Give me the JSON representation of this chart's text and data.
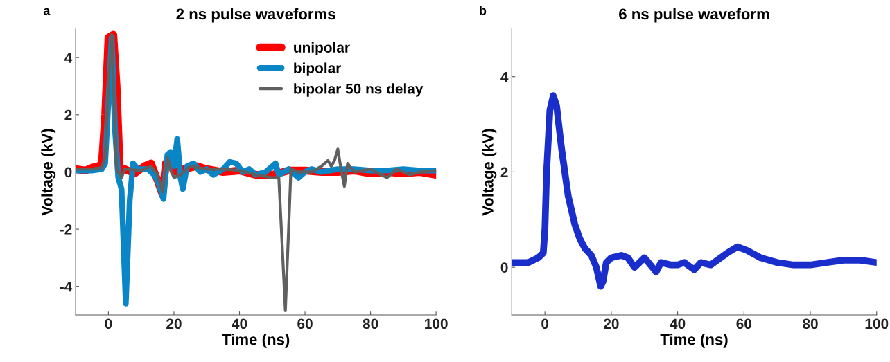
{
  "chart_data": [
    {
      "type": "line",
      "title": "2 ns pulse waveforms",
      "xlabel": "Time (ns)",
      "ylabel": "Voltage (kV)",
      "annotations": [
        "a"
      ],
      "xlim": [
        -10,
        100
      ],
      "ylim": [
        -5,
        5
      ],
      "xticks": [
        0,
        20,
        40,
        60,
        80,
        100
      ],
      "yticks": [
        -4,
        -2,
        0,
        2,
        4
      ],
      "grid": false,
      "legend": "top right",
      "series": [
        {
          "name": "unipolar",
          "color": "#ff0000",
          "x": [
            -10,
            -7,
            -5,
            -3,
            -2,
            -1,
            0,
            1.5,
            2.5,
            3.5,
            5,
            8,
            11,
            13,
            15,
            16.5,
            17.5,
            18.5,
            20,
            23,
            27,
            30,
            35,
            40,
            45,
            50,
            55,
            60,
            65,
            70,
            75,
            80,
            85,
            90,
            95,
            100
          ],
          "values": [
            0.1,
            0.05,
            0.15,
            0.2,
            0.3,
            2,
            4.7,
            4.8,
            3,
            0,
            0.1,
            -0.05,
            0.2,
            0.3,
            -0.3,
            -0.8,
            0.3,
            0.45,
            0,
            0.1,
            0.2,
            0.1,
            0,
            0.05,
            -0.1,
            -0.1,
            0.05,
            0.05,
            0,
            0,
            0.05,
            -0.05,
            0,
            -0.05,
            0,
            -0.1
          ]
        },
        {
          "name": "bipolar",
          "color": "#0a86c6",
          "x": [
            -10,
            -5,
            -2,
            -1,
            0,
            1,
            2,
            3,
            4,
            5.3,
            6.5,
            7.5,
            9,
            12,
            14,
            15,
            16.8,
            18,
            19,
            20,
            21,
            22,
            22.7,
            24,
            26,
            28,
            30,
            32,
            35,
            37,
            39,
            41,
            43,
            45,
            48,
            51,
            52,
            55,
            58,
            60,
            62,
            65,
            70,
            75,
            80,
            85,
            90,
            95,
            100
          ],
          "values": [
            0.05,
            0.05,
            0.1,
            0.3,
            2.5,
            4.7,
            1.5,
            -0.2,
            -0.6,
            -4.6,
            -1,
            0.3,
            0.1,
            0.1,
            -0.1,
            -0.3,
            -0.95,
            0.6,
            0.7,
            0.2,
            1.15,
            -0.2,
            -0.6,
            0.2,
            0.3,
            0,
            0.1,
            -0.1,
            0.1,
            0.35,
            0.3,
            0,
            0.1,
            -0.1,
            0,
            0.3,
            -0.1,
            0.1,
            -0.2,
            0,
            0.1,
            0,
            0.1,
            0.1,
            0.05,
            0.05,
            0.1,
            0.05,
            0.05
          ]
        },
        {
          "name": "bipolar 50 ns delay",
          "color": "#606060",
          "x": [
            -10,
            -5,
            -2,
            -1,
            0,
            1,
            2.5,
            4,
            5,
            10,
            13,
            15,
            16.5,
            18,
            19,
            20,
            22,
            25,
            30,
            35,
            40,
            45,
            50,
            52,
            53,
            54,
            55,
            55.7,
            58,
            62,
            65,
            67,
            68,
            69,
            70,
            71,
            72,
            73,
            75,
            80,
            85,
            88,
            92,
            95,
            100
          ],
          "values": [
            0.1,
            0.1,
            0.15,
            0.5,
            3,
            4.8,
            0.1,
            -0.2,
            0.1,
            0.05,
            0.2,
            -0.1,
            -0.7,
            0.5,
            0.1,
            -0.2,
            -0.1,
            0.2,
            0.1,
            0.1,
            0.05,
            -0.1,
            -0.2,
            -0.2,
            -2.5,
            -4.85,
            -2,
            0.1,
            0,
            0,
            0.2,
            0.4,
            0.2,
            0.4,
            0.8,
            0.1,
            -0.5,
            0.3,
            0,
            0.1,
            -0.2,
            0.1,
            -0.1,
            0,
            0.05
          ]
        }
      ]
    },
    {
      "type": "line",
      "title": "6 ns pulse waveform",
      "xlabel": "Time (ns)",
      "ylabel": "Voltage (kV)",
      "annotations": [
        "b"
      ],
      "xlim": [
        -10,
        100
      ],
      "ylim": [
        -1,
        5
      ],
      "xticks": [
        0,
        20,
        40,
        60,
        80,
        100
      ],
      "yticks": [
        0,
        2,
        4
      ],
      "grid": false,
      "series": [
        {
          "color": "#1a2ecc",
          "x": [
            -10,
            -5,
            -2,
            -0.5,
            0,
            0.5,
            1.5,
            2.5,
            3.5,
            5,
            7,
            9,
            10.5,
            12,
            14,
            15.5,
            16.8,
            17.5,
            18.5,
            20,
            23,
            25,
            27,
            30,
            33,
            33.5,
            35,
            38,
            40,
            42,
            45,
            47,
            50,
            52,
            55,
            58,
            61,
            65,
            70,
            75,
            80,
            85,
            90,
            95,
            100
          ],
          "values": [
            0.1,
            0.1,
            0.2,
            0.3,
            0.8,
            2,
            3.3,
            3.6,
            3.4,
            2.5,
            1.5,
            0.9,
            0.6,
            0.4,
            0.25,
            0,
            -0.4,
            -0.3,
            0.1,
            0.2,
            0.25,
            0.2,
            0,
            0.2,
            -0.05,
            -0.1,
            0.1,
            0.05,
            0.05,
            0.1,
            -0.05,
            0.1,
            0.05,
            0.15,
            0.3,
            0.43,
            0.35,
            0.2,
            0.1,
            0.05,
            0.05,
            0.1,
            0.15,
            0.15,
            0.1
          ]
        }
      ]
    }
  ]
}
